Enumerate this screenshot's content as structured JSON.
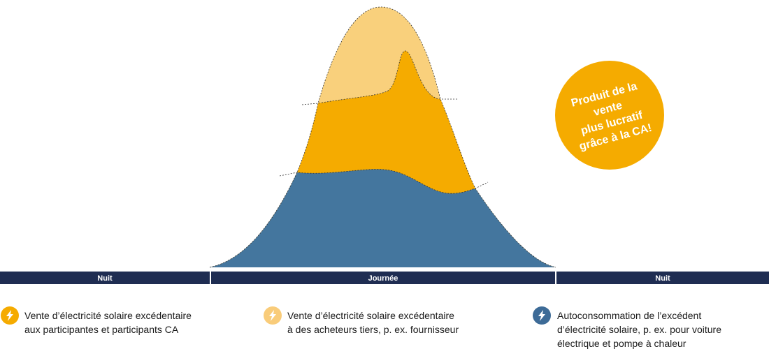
{
  "badge": {
    "lines": [
      "Produit de la",
      "vente",
      "plus lucratif",
      "grâce à la CA!"
    ]
  },
  "timeline": [
    "Nuit",
    "Journée",
    "Nuit"
  ],
  "legend": [
    {
      "lines": [
        "Vente d’électricité solaire excédentaire",
        "aux participantes et participants CA"
      ]
    },
    {
      "lines": [
        "Vente d’électricité solaire excédentaire",
        "à des acheteurs tiers, p. ex. fournisseur"
      ]
    },
    {
      "lines": [
        "Autoconsommation de l’excédent",
        "d’électricité solaire, p. ex. pour voiture",
        "électrique et pompe à chaleur"
      ]
    }
  ]
}
